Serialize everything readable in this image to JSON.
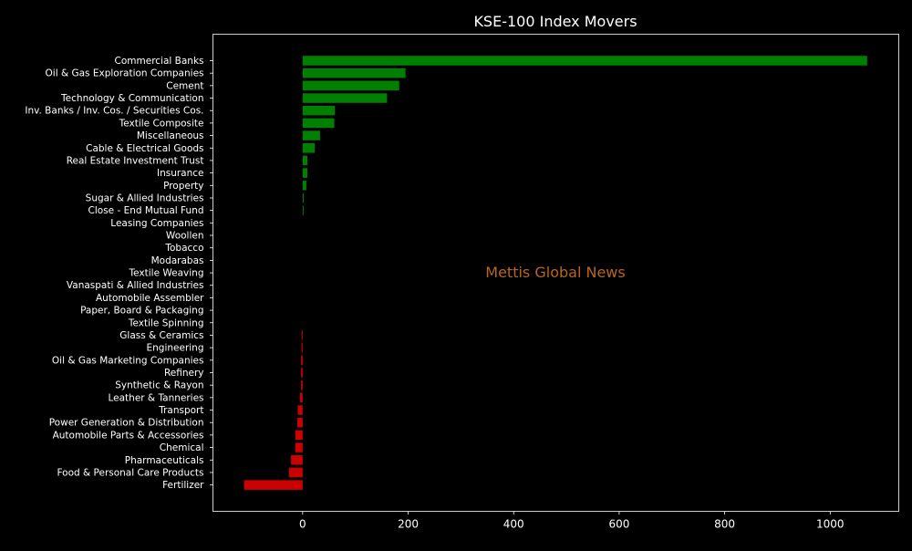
{
  "chart_data": {
    "type": "bar",
    "orientation": "horizontal",
    "title": "KSE-100 Index Movers",
    "watermark": "Mettis Global News",
    "xlabel": "",
    "ylabel": "",
    "xlim": [
      -170,
      1130
    ],
    "xticks": [
      0,
      200,
      400,
      600,
      800,
      1000
    ],
    "grid": false,
    "legend": "none",
    "colors": {
      "background": "#000000",
      "positive": "#008000",
      "negative": "#cc0000",
      "text": "#ffffff",
      "axes": "#ffffff",
      "watermark": "#b8651f"
    },
    "categories": [
      "Commercial Banks",
      "Oil & Gas Exploration Companies",
      "Cement",
      "Technology & Communication",
      "Inv. Banks / Inv. Cos. / Securities Cos.",
      "Textile Composite",
      "Miscellaneous",
      "Cable & Electrical Goods",
      "Real Estate Investment Trust",
      "Insurance",
      "Property",
      "Sugar & Allied Industries",
      "Close - End Mutual Fund",
      "Leasing Companies",
      "Woollen",
      "Tobacco",
      "Modarabas",
      "Textile Weaving",
      "Vanaspati & Allied Industries",
      "Automobile Assembler",
      "Paper, Board & Packaging",
      "Textile Spinning",
      "Glass & Ceramics",
      "Engineering",
      "Oil & Gas Marketing Companies",
      "Refinery",
      "Synthetic & Rayon",
      "Leather & Tanneries",
      "Transport",
      "Power Generation & Distribution",
      "Automobile Parts & Accessories",
      "Chemical",
      "Pharmaceuticals",
      "Food & Personal Care Products",
      "Fertilizer"
    ],
    "values": [
      1070,
      195,
      183,
      160,
      61,
      60,
      33,
      23,
      9,
      9,
      7,
      2,
      1,
      0,
      0,
      0,
      0,
      0,
      0,
      0,
      0,
      0,
      -1,
      -2,
      -3,
      -3,
      -3,
      -5,
      -9,
      -10,
      -14,
      -14,
      -22,
      -26,
      -111
    ]
  }
}
